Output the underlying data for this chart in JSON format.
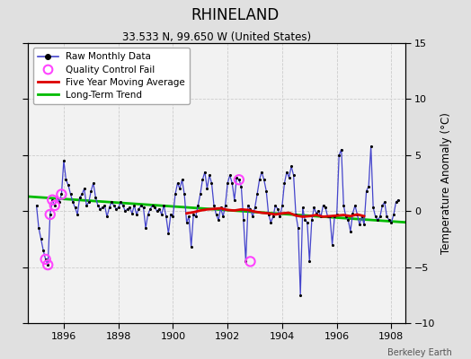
{
  "title": "RHINELAND",
  "subtitle": "33.533 N, 99.650 W (United States)",
  "ylabel": "Temperature Anomaly (°C)",
  "watermark": "Berkeley Earth",
  "xlim": [
    1894.7,
    1908.5
  ],
  "ylim": [
    -10,
    15
  ],
  "yticks": [
    -10,
    -5,
    0,
    5,
    10,
    15
  ],
  "xticks": [
    1896,
    1898,
    1900,
    1902,
    1904,
    1906,
    1908
  ],
  "fig_bg": "#e0e0e0",
  "plot_bg": "#f2f2f2",
  "raw_color": "#4444cc",
  "dot_color": "#000000",
  "ma_color": "#dd0000",
  "trend_color": "#00bb00",
  "qc_color": "#ff44ff",
  "raw_x": [
    1895.0,
    1895.083,
    1895.167,
    1895.25,
    1895.333,
    1895.417,
    1895.5,
    1895.583,
    1895.667,
    1895.75,
    1895.833,
    1895.917,
    1896.0,
    1896.083,
    1896.167,
    1896.25,
    1896.333,
    1896.417,
    1896.5,
    1896.583,
    1896.667,
    1896.75,
    1896.833,
    1896.917,
    1897.0,
    1897.083,
    1897.167,
    1897.25,
    1897.333,
    1897.417,
    1897.5,
    1897.583,
    1897.667,
    1897.75,
    1897.833,
    1897.917,
    1898.0,
    1898.083,
    1898.167,
    1898.25,
    1898.333,
    1898.417,
    1898.5,
    1898.583,
    1898.667,
    1898.75,
    1898.833,
    1898.917,
    1899.0,
    1899.083,
    1899.167,
    1899.25,
    1899.333,
    1899.417,
    1899.5,
    1899.583,
    1899.667,
    1899.75,
    1899.833,
    1899.917,
    1900.0,
    1900.083,
    1900.167,
    1900.25,
    1900.333,
    1900.417,
    1900.5,
    1900.583,
    1900.667,
    1900.75,
    1900.833,
    1900.917,
    1901.0,
    1901.083,
    1901.167,
    1901.25,
    1901.333,
    1901.417,
    1901.5,
    1901.583,
    1901.667,
    1901.75,
    1901.833,
    1901.917,
    1902.0,
    1902.083,
    1902.167,
    1902.25,
    1902.333,
    1902.417,
    1902.5,
    1902.583,
    1902.667,
    1902.75,
    1902.833,
    1902.917,
    1903.0,
    1903.083,
    1903.167,
    1903.25,
    1903.333,
    1903.417,
    1903.5,
    1903.583,
    1903.667,
    1903.75,
    1903.833,
    1903.917,
    1904.0,
    1904.083,
    1904.167,
    1904.25,
    1904.333,
    1904.417,
    1904.5,
    1904.583,
    1904.667,
    1904.75,
    1904.833,
    1904.917,
    1905.0,
    1905.083,
    1905.167,
    1905.25,
    1905.333,
    1905.417,
    1905.5,
    1905.583,
    1905.667,
    1905.75,
    1905.833,
    1905.917,
    1906.0,
    1906.083,
    1906.167,
    1906.25,
    1906.333,
    1906.417,
    1906.5,
    1906.583,
    1906.667,
    1906.75,
    1906.833,
    1906.917,
    1907.0,
    1907.083,
    1907.167,
    1907.25,
    1907.333,
    1907.417,
    1907.5,
    1907.583,
    1907.667,
    1907.75,
    1907.833,
    1907.917,
    1908.0,
    1908.083,
    1908.167,
    1908.25
  ],
  "raw_y": [
    0.5,
    -1.5,
    -2.5,
    -3.5,
    -4.3,
    -4.8,
    -0.3,
    1.0,
    0.5,
    1.2,
    0.8,
    1.5,
    4.5,
    2.8,
    2.3,
    1.5,
    0.8,
    0.3,
    -0.3,
    1.2,
    1.5,
    2.0,
    0.5,
    0.8,
    1.8,
    2.5,
    1.2,
    0.5,
    0.2,
    0.3,
    0.5,
    -0.5,
    0.3,
    0.8,
    0.5,
    0.2,
    0.3,
    0.8,
    0.5,
    0.0,
    0.2,
    0.3,
    -0.2,
    0.5,
    -0.3,
    0.2,
    0.5,
    0.3,
    -1.5,
    -0.3,
    0.2,
    0.5,
    0.3,
    0.0,
    0.2,
    -0.3,
    0.5,
    -0.5,
    -2.0,
    -0.3,
    -0.5,
    1.5,
    2.5,
    2.0,
    2.8,
    1.5,
    -1.0,
    -0.5,
    -3.2,
    -0.3,
    -0.5,
    0.5,
    1.5,
    2.8,
    3.5,
    2.0,
    3.2,
    2.5,
    0.5,
    -0.3,
    -0.8,
    0.3,
    -0.5,
    0.5,
    2.5,
    3.2,
    2.5,
    1.0,
    3.0,
    2.8,
    2.2,
    -0.8,
    -4.5,
    0.5,
    0.2,
    -0.5,
    0.3,
    1.5,
    2.8,
    3.5,
    2.8,
    1.8,
    -0.3,
    -1.0,
    -0.5,
    0.5,
    0.2,
    -0.5,
    0.5,
    2.5,
    3.5,
    3.0,
    4.0,
    3.2,
    -0.3,
    -1.5,
    -7.5,
    0.3,
    -0.8,
    -1.0,
    -4.5,
    -0.8,
    0.3,
    -0.2,
    0.0,
    -0.5,
    0.5,
    0.3,
    -0.5,
    -0.5,
    -3.0,
    -0.5,
    -0.3,
    5.0,
    5.5,
    0.5,
    -0.5,
    -0.8,
    -1.8,
    -0.2,
    0.5,
    -0.3,
    -1.2,
    -0.5,
    -1.2,
    1.8,
    2.2,
    5.8,
    0.3,
    -0.5,
    -0.8,
    -0.5,
    0.5,
    0.8,
    -0.5,
    -0.8,
    -1.0,
    -0.3,
    0.8,
    1.0
  ],
  "qc_x": [
    1895.333,
    1895.417,
    1895.5,
    1895.583,
    1895.667,
    1895.917,
    1902.417,
    1902.833
  ],
  "qc_y": [
    -4.3,
    -4.8,
    -0.3,
    1.0,
    0.5,
    1.5,
    2.8,
    -4.5
  ],
  "ma_x": [
    1900.5,
    1900.75,
    1901.0,
    1901.25,
    1901.5,
    1901.75,
    1902.0,
    1902.25,
    1902.5,
    1902.75,
    1903.0,
    1903.25,
    1903.5,
    1903.75,
    1904.0,
    1904.25,
    1904.5,
    1904.75,
    1905.0,
    1905.25,
    1905.5,
    1905.75,
    1906.0,
    1906.25,
    1906.5,
    1906.75,
    1907.0
  ],
  "ma_y": [
    -0.2,
    -0.1,
    0.05,
    0.15,
    0.2,
    0.25,
    0.1,
    0.05,
    0.15,
    0.1,
    -0.05,
    -0.15,
    -0.2,
    -0.3,
    -0.2,
    -0.15,
    -0.4,
    -0.5,
    -0.45,
    -0.35,
    -0.5,
    -0.45,
    -0.4,
    -0.35,
    -0.45,
    -0.3,
    -0.45
  ],
  "trend_x": [
    1894.7,
    1908.5
  ],
  "trend_y": [
    1.3,
    -1.0
  ]
}
